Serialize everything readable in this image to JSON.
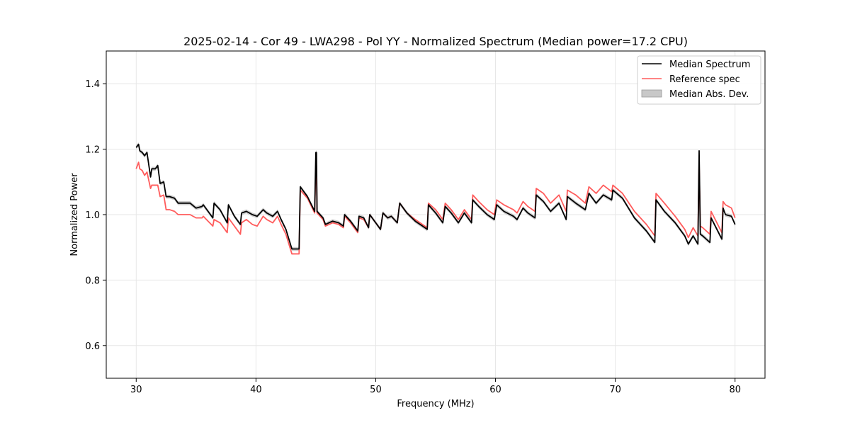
{
  "chart_data": {
    "type": "line",
    "title": "2025-02-14 - Cor 49 - LWA298 - Pol YY - Normalized Spectrum (Median power=17.2 CPU)",
    "xlabel": "Frequency (MHz)",
    "ylabel": "Normalized Power",
    "xlim": [
      27.5,
      82.5
    ],
    "ylim": [
      0.5,
      1.5
    ],
    "xticks": [
      30,
      40,
      50,
      60,
      70,
      80
    ],
    "yticks": [
      0.6,
      0.8,
      1.0,
      1.2,
      1.4
    ],
    "xtick_labels": [
      "30",
      "40",
      "50",
      "60",
      "70",
      "80"
    ],
    "ytick_labels": [
      "0.6",
      "0.8",
      "1.0",
      "1.2",
      "1.4"
    ],
    "grid": true,
    "legend_position": "top-right",
    "mad_width": 0.006,
    "series": [
      {
        "name": "Median Spectrum",
        "color": "#000000",
        "x": [
          30.0,
          30.2,
          30.3,
          30.5,
          30.7,
          30.9,
          31.2,
          31.3,
          31.6,
          31.8,
          32.0,
          32.3,
          32.5,
          32.8,
          33.2,
          33.5,
          34.0,
          34.5,
          35.0,
          35.5,
          35.6,
          36.0,
          36.4,
          36.5,
          37.0,
          37.6,
          37.7,
          38.2,
          38.7,
          38.8,
          39.2,
          39.7,
          40.1,
          40.6,
          40.9,
          41.4,
          41.8,
          42.1,
          42.5,
          43.0,
          43.6,
          43.7,
          44.3,
          44.9,
          45.0,
          45.05,
          45.1,
          45.6,
          45.8,
          46.4,
          46.9,
          47.3,
          47.4,
          47.9,
          48.5,
          48.6,
          49.0,
          49.4,
          49.5,
          49.9,
          50.4,
          50.6,
          51.0,
          51.3,
          51.8,
          52.0,
          52.6,
          53.3,
          53.9,
          54.3,
          54.4,
          55.0,
          55.6,
          55.8,
          56.3,
          56.5,
          56.9,
          57.4,
          58.0,
          58.1,
          58.6,
          59.3,
          59.9,
          60.1,
          60.7,
          61.5,
          61.8,
          62.3,
          62.7,
          63.3,
          63.4,
          64.0,
          64.6,
          65.3,
          65.9,
          66.0,
          66.7,
          67.5,
          67.8,
          68.4,
          69.0,
          69.7,
          69.8,
          70.6,
          71.6,
          72.6,
          73.3,
          73.4,
          74.1,
          75.0,
          75.8,
          76.1,
          76.5,
          76.9,
          77.0,
          77.1,
          77.3,
          77.9,
          78.0,
          78.9,
          79.0,
          79.2,
          79.7,
          80.0
        ],
        "y": [
          1.205,
          1.215,
          1.195,
          1.19,
          1.18,
          1.19,
          1.115,
          1.14,
          1.14,
          1.15,
          1.095,
          1.1,
          1.055,
          1.055,
          1.05,
          1.035,
          1.035,
          1.035,
          1.02,
          1.025,
          1.03,
          1.01,
          0.99,
          1.035,
          1.015,
          0.975,
          1.03,
          0.995,
          0.97,
          1.005,
          1.01,
          1.0,
          0.995,
          1.015,
          1.005,
          0.995,
          1.01,
          0.985,
          0.955,
          0.895,
          0.895,
          1.085,
          1.055,
          1.01,
          1.19,
          1.19,
          1.01,
          0.99,
          0.97,
          0.98,
          0.975,
          0.965,
          1.0,
          0.98,
          0.95,
          0.995,
          0.99,
          0.96,
          1.0,
          0.98,
          0.955,
          1.005,
          0.99,
          0.995,
          0.975,
          1.035,
          1.005,
          0.98,
          0.965,
          0.955,
          1.03,
          1.005,
          0.975,
          1.025,
          1.005,
          0.995,
          0.975,
          1.005,
          0.975,
          1.045,
          1.025,
          1.0,
          0.985,
          1.03,
          1.01,
          0.995,
          0.985,
          1.02,
          1.005,
          0.99,
          1.06,
          1.04,
          1.01,
          1.035,
          0.985,
          1.055,
          1.035,
          1.015,
          1.065,
          1.035,
          1.06,
          1.045,
          1.075,
          1.05,
          0.99,
          0.95,
          0.915,
          1.045,
          1.01,
          0.975,
          0.935,
          0.91,
          0.935,
          0.91,
          1.195,
          0.94,
          0.935,
          0.915,
          0.99,
          0.925,
          1.02,
          1.0,
          0.995,
          0.97
        ]
      },
      {
        "name": "Reference spec",
        "color": "#ff5c5c",
        "x": [
          30.0,
          30.2,
          30.3,
          30.5,
          30.7,
          30.9,
          31.2,
          31.3,
          31.6,
          31.8,
          32.0,
          32.3,
          32.5,
          32.8,
          33.2,
          33.5,
          34.0,
          34.5,
          35.0,
          35.5,
          35.6,
          36.0,
          36.4,
          36.5,
          37.0,
          37.6,
          37.7,
          38.2,
          38.7,
          38.8,
          39.2,
          39.7,
          40.1,
          40.6,
          40.9,
          41.4,
          41.8,
          42.1,
          42.5,
          43.0,
          43.6,
          43.7,
          44.3,
          44.9,
          45.0,
          45.05,
          45.1,
          45.6,
          45.8,
          46.4,
          46.9,
          47.3,
          47.4,
          47.9,
          48.5,
          48.6,
          49.0,
          49.4,
          49.5,
          49.9,
          50.4,
          50.6,
          51.0,
          51.3,
          51.8,
          52.0,
          52.6,
          53.3,
          53.9,
          54.3,
          54.4,
          55.0,
          55.6,
          55.8,
          56.3,
          56.5,
          56.9,
          57.4,
          58.0,
          58.1,
          58.6,
          59.3,
          59.9,
          60.1,
          60.7,
          61.5,
          61.8,
          62.3,
          62.7,
          63.3,
          63.4,
          64.0,
          64.6,
          65.3,
          65.9,
          66.0,
          66.7,
          67.5,
          67.8,
          68.4,
          69.0,
          69.7,
          69.8,
          70.6,
          71.6,
          72.6,
          73.3,
          73.4,
          74.1,
          75.0,
          75.8,
          76.1,
          76.5,
          76.9,
          77.0,
          77.1,
          77.3,
          77.9,
          78.0,
          78.9,
          79.0,
          79.2,
          79.7,
          80.0
        ],
        "y": [
          1.14,
          1.16,
          1.14,
          1.135,
          1.12,
          1.13,
          1.08,
          1.09,
          1.09,
          1.09,
          1.055,
          1.06,
          1.015,
          1.015,
          1.01,
          1.0,
          1.0,
          1.0,
          0.99,
          0.99,
          0.995,
          0.98,
          0.965,
          0.985,
          0.975,
          0.945,
          0.99,
          0.965,
          0.94,
          0.975,
          0.985,
          0.97,
          0.965,
          0.995,
          0.985,
          0.975,
          0.995,
          0.97,
          0.94,
          0.88,
          0.88,
          1.075,
          1.05,
          1.005,
          1.15,
          1.15,
          1.005,
          0.985,
          0.965,
          0.975,
          0.97,
          0.96,
          0.995,
          0.975,
          0.945,
          0.99,
          0.985,
          0.96,
          1.0,
          0.98,
          0.955,
          1.005,
          0.99,
          0.995,
          0.975,
          1.035,
          1.005,
          0.985,
          0.97,
          0.96,
          1.035,
          1.015,
          0.985,
          1.035,
          1.015,
          1.005,
          0.985,
          1.015,
          0.985,
          1.06,
          1.04,
          1.015,
          1.0,
          1.045,
          1.03,
          1.015,
          1.005,
          1.04,
          1.025,
          1.01,
          1.08,
          1.065,
          1.035,
          1.06,
          1.01,
          1.075,
          1.06,
          1.035,
          1.085,
          1.065,
          1.09,
          1.07,
          1.09,
          1.065,
          1.01,
          0.97,
          0.935,
          1.065,
          1.035,
          0.995,
          0.955,
          0.93,
          0.96,
          0.935,
          1.16,
          0.965,
          0.96,
          0.94,
          1.01,
          0.945,
          1.04,
          1.03,
          1.02,
          0.99
        ]
      }
    ],
    "legend": {
      "entries": [
        {
          "label": "Median Spectrum",
          "kind": "line",
          "color": "#000000"
        },
        {
          "label": "Reference spec",
          "kind": "line",
          "color": "#ff5c5c"
        },
        {
          "label": "Median Abs. Dev.",
          "kind": "patch",
          "color": "#c8c8c8"
        }
      ]
    }
  }
}
